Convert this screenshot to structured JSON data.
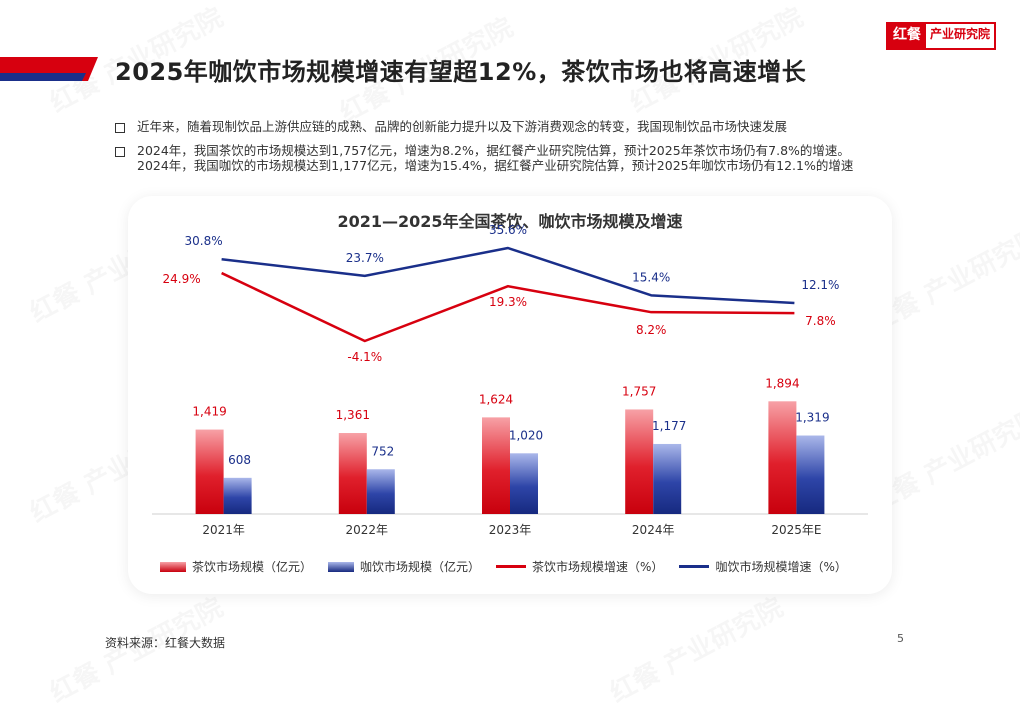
{
  "logo": {
    "mark": "红餐",
    "text": "产业研究院"
  },
  "page_title": "2025年咖饮市场规模增速有望超12%，茶饮市场也将高速增长",
  "bullets": [
    {
      "lines": [
        "近年来，随着现制饮品上游供应链的成熟、品牌的创新能力提升以及下游消费观念的转变，我国现制饮品市场快速发展"
      ]
    },
    {
      "lines": [
        "2024年，我国茶饮的市场规模达到1,757亿元，增速为8.2%，据红餐产业研究院估算，预计2025年茶饮市场仍有7.8%的增速。",
        "2024年，我国咖饮的市场规模达到1,177亿元，增速为15.4%，据红餐产业研究院估算，预计2025年咖饮市场仍有12.1%的增速"
      ]
    }
  ],
  "source": "资料来源：红餐大数据",
  "page_number": "5",
  "watermark": "红餐 产业研究院",
  "colors": {
    "tea": "#d7000f",
    "coffee": "#1a2f8a"
  },
  "chart_data": {
    "type": "bar",
    "title": "2021—2025年全国茶饮、咖饮市场规模及增速",
    "categories": [
      "2021年",
      "2022年",
      "2023年",
      "2024年",
      "2025年E"
    ],
    "series": [
      {
        "name": "茶饮市场规模（亿元）",
        "type": "bar",
        "values": [
          1419,
          1361,
          1624,
          1757,
          1894
        ],
        "labels": [
          "1,419",
          "1,361",
          "1,624",
          "1,757",
          "1,894"
        ]
      },
      {
        "name": "咖饮市场规模（亿元）",
        "type": "bar",
        "values": [
          608,
          752,
          1020,
          1177,
          1319
        ],
        "labels": [
          "608",
          "752",
          "1,020",
          "1,177",
          "1,319"
        ]
      },
      {
        "name": "茶饮市场规模增速（%）",
        "type": "line",
        "values": [
          24.9,
          -4.1,
          19.3,
          8.2,
          7.8
        ],
        "labels": [
          "24.9%",
          "-4.1%",
          "19.3%",
          "8.2%",
          "7.8%"
        ]
      },
      {
        "name": "咖饮市场规模增速（%）",
        "type": "line",
        "values": [
          30.8,
          23.7,
          35.6,
          15.4,
          12.1
        ],
        "labels": [
          "30.8%",
          "23.7%",
          "35.6%",
          "15.4%",
          "12.1%"
        ]
      }
    ],
    "legend_position": "bottom",
    "grid": false
  }
}
